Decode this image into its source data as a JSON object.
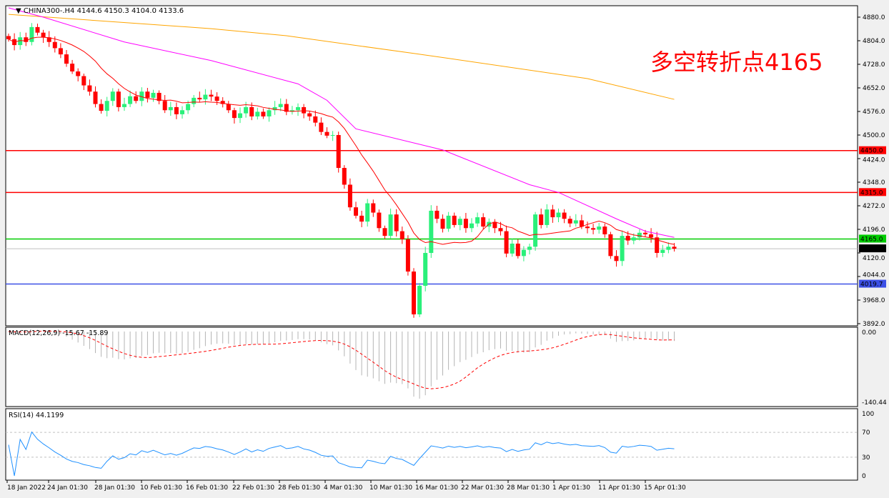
{
  "header": {
    "symbol": "CHINA300-.H4",
    "ohlc": "4144.6 4150.3 4104.0 4133.6"
  },
  "annotation": "多空转折点4165",
  "macd_label": "MACD(12,26,9) -15.67 -15.89",
  "rsi_label": "RSI(14) 44.1199",
  "colors": {
    "bull": "#2af07a",
    "bear": "#ff0000",
    "ma_fast": "#ff0000",
    "ma_mid": "#ff00ff",
    "ma_slow": "#ffa500",
    "level_red": "#ff0000",
    "level_green": "#00cc00",
    "level_blue": "#3c50e6"
  },
  "chart_data": {
    "type": "candlestick",
    "ylim": [
      3892,
      4880
    ],
    "y_ticks": [
      "4880.0",
      "4804.0",
      "4728.0",
      "4652.0",
      "4576.0",
      "4500.0",
      "4424.0",
      "4348.0",
      "4272.0",
      "4196.0",
      "4120.0",
      "4044.0",
      "3968.0",
      "3892.0"
    ],
    "x_ticks": [
      "18 Jan 2022",
      "24 Jan 01:30",
      "28 Jan 01:30",
      "10 Feb 01:30",
      "16 Feb 01:30",
      "22 Feb 01:30",
      "28 Feb 01:30",
      "4 Mar 01:30",
      "10 Mar 01:30",
      "16 Mar 01:30",
      "22 Mar 01:30",
      "28 Mar 01:30",
      "1 Apr 01:30",
      "11 Apr 01:30",
      "15 Apr 01:30"
    ],
    "closes": [
      4809,
      4790,
      4815,
      4800,
      4848,
      4830,
      4815,
      4800,
      4780,
      4760,
      4730,
      4705,
      4690,
      4660,
      4640,
      4600,
      4578,
      4610,
      4640,
      4590,
      4600,
      4625,
      4610,
      4640,
      4620,
      4636,
      4610,
      4580,
      4590,
      4567,
      4580,
      4600,
      4620,
      4615,
      4630,
      4624,
      4610,
      4600,
      4580,
      4555,
      4570,
      4590,
      4560,
      4575,
      4560,
      4580,
      4590,
      4600,
      4575,
      4580,
      4590,
      4570,
      4560,
      4540,
      4510,
      4498,
      4500,
      4394,
      4340,
      4267,
      4240,
      4221,
      4280,
      4250,
      4200,
      4175,
      4244,
      4190,
      4164,
      4060,
      3922,
      4014,
      4120,
      4256,
      4230,
      4198,
      4240,
      4210,
      4230,
      4200,
      4215,
      4235,
      4205,
      4220,
      4200,
      4190,
      4118,
      4150,
      4110,
      4130,
      4140,
      4244,
      4210,
      4260,
      4235,
      4250,
      4230,
      4215,
      4225,
      4205,
      4200,
      4195,
      4205,
      4180,
      4110,
      4094,
      4175,
      4160,
      4170,
      4185,
      4180,
      4170,
      4120,
      4130,
      4140,
      4133.6
    ],
    "ma_mid_points": [
      [
        0,
        4910
      ],
      [
        6,
        4880
      ],
      [
        20,
        4800
      ],
      [
        35,
        4740
      ],
      [
        50,
        4665
      ],
      [
        55,
        4612
      ],
      [
        60,
        4520
      ],
      [
        75,
        4452
      ],
      [
        90,
        4340
      ],
      [
        95,
        4315
      ],
      [
        105,
        4230
      ],
      [
        110,
        4190
      ],
      [
        115,
        4170
      ]
    ],
    "ma_slow_points": [
      [
        0,
        4889
      ],
      [
        35,
        4843
      ],
      [
        48,
        4820
      ],
      [
        70,
        4763
      ],
      [
        75,
        4750
      ],
      [
        100,
        4682
      ],
      [
        115,
        4615
      ]
    ],
    "levels": [
      {
        "value": 4450.0,
        "label": "4450.0",
        "color": "#ff0000"
      },
      {
        "value": 4315.0,
        "label": "4315.0",
        "color": "#ff0000"
      },
      {
        "value": 4165.0,
        "label": "4165.0",
        "color": "#00cc00"
      },
      {
        "value": 4019.7,
        "label": "4019.7",
        "color": "#3c50e6"
      }
    ],
    "current": {
      "value": 4133.6,
      "label": "4133.6"
    },
    "macd": {
      "ylim": [
        -140.44,
        0
      ],
      "ticks": [
        "0.00",
        "-140.44"
      ]
    },
    "rsi": {
      "ylim": [
        0,
        100
      ],
      "ticks": [
        "100",
        "70",
        "30",
        "0"
      ],
      "levels": [
        70,
        30
      ]
    }
  }
}
